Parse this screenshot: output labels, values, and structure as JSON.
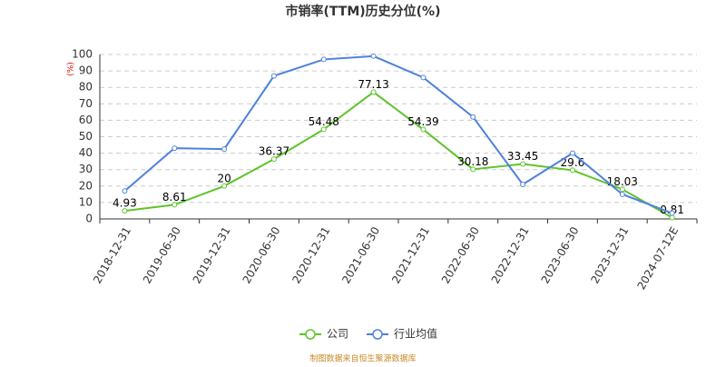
{
  "chart_data": {
    "type": "line",
    "title": "市销率(TTM)历史分位(%)",
    "y_label": "(%)",
    "categories": [
      "2018-12-31",
      "2019-06-30",
      "2019-12-31",
      "2020-06-30",
      "2020-12-31",
      "2021-06-30",
      "2021-12-31",
      "2022-06-30",
      "2022-12-31",
      "2023-06-30",
      "2023-12-31",
      "2024-07-12E"
    ],
    "series": [
      {
        "name": "公司",
        "color": "#5fc42c",
        "values": [
          4.93,
          8.61,
          20,
          36.37,
          54.48,
          77.13,
          54.39,
          30.18,
          33.45,
          29.6,
          18.03,
          0.81
        ],
        "show_labels": true
      },
      {
        "name": "行业均值",
        "color": "#4f81dc",
        "values": [
          17,
          43,
          42.5,
          87,
          97,
          99,
          86,
          62,
          21,
          40,
          15,
          3.5
        ],
        "show_labels": false
      }
    ],
    "ylim": [
      0,
      100
    ],
    "yticks": [
      0,
      10,
      20,
      30,
      40,
      50,
      60,
      70,
      80,
      90,
      100
    ],
    "grid": true,
    "legend": "bottom",
    "source": "制图数据来自恒生聚源数据库"
  }
}
